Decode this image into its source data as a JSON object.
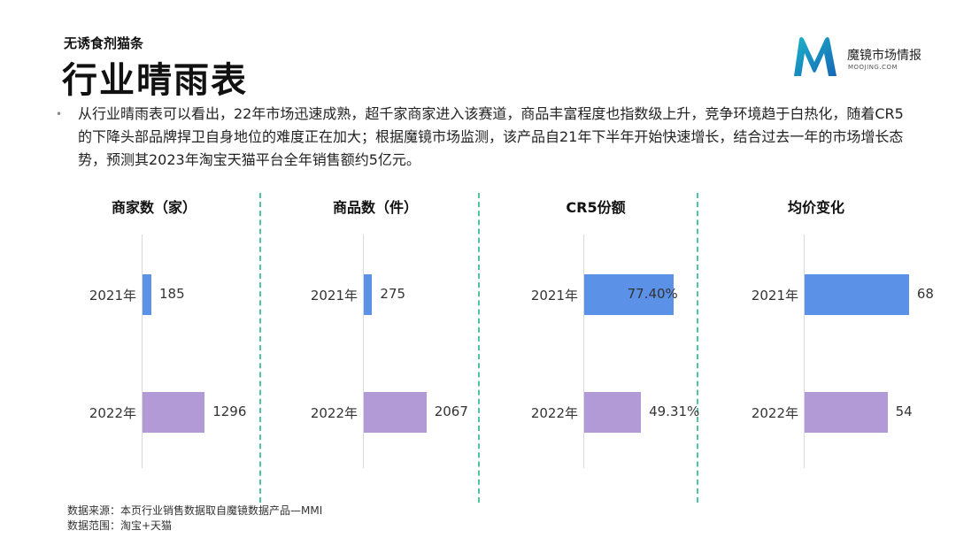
{
  "header": {
    "subtitle": "无诱食剂猫条",
    "title": "行业晴雨表"
  },
  "logo": {
    "name": "魔镜市场情报",
    "sub": "MOOJING.COM"
  },
  "intro": "从行业晴雨表可以看出，22年市场迅速成熟，超千家商家进入该赛道，商品丰富程度也指数级上升，竞争环境趋于白热化，随着CR5的下降头部品牌捍卫自身地位的难度正在加大；根据魔镜市场监测，该产品自21年下半年开始快速增长，结合过去一年的市场增长态势，预测其2023年淘宝天猫平台全年销售额约5亿元。",
  "colors": {
    "bar2021": "#5b91e6",
    "bar2022": "#b29ad6",
    "divider": "#4fc3a1"
  },
  "chart_data": [
    {
      "type": "bar",
      "title": "商家数（家）",
      "categories": [
        "2021年",
        "2022年"
      ],
      "values": [
        185,
        1296
      ],
      "labels": [
        "185",
        "1296"
      ],
      "xlim": [
        0,
        2400
      ]
    },
    {
      "type": "bar",
      "title": "商品数（件）",
      "categories": [
        "2021年",
        "2022年"
      ],
      "values": [
        275,
        2067
      ],
      "labels": [
        "275",
        "2067"
      ],
      "xlim": [
        0,
        3800
      ]
    },
    {
      "type": "bar",
      "title": "CR5份额",
      "categories": [
        "2021年",
        "2022年"
      ],
      "values": [
        77.4,
        49.31
      ],
      "labels": [
        "77.40%",
        "49.31%"
      ],
      "xlim": [
        0,
        100
      ]
    },
    {
      "type": "bar",
      "title": "均价变化",
      "categories": [
        "2021年",
        "2022年"
      ],
      "values": [
        68,
        54
      ],
      "labels": [
        "68",
        "54"
      ],
      "xlim": [
        0,
        75
      ]
    }
  ],
  "footer": {
    "source": "数据来源：本页行业销售数据取自魔镜数据产品—MMI",
    "scope": "数据范围：淘宝+天猫"
  }
}
